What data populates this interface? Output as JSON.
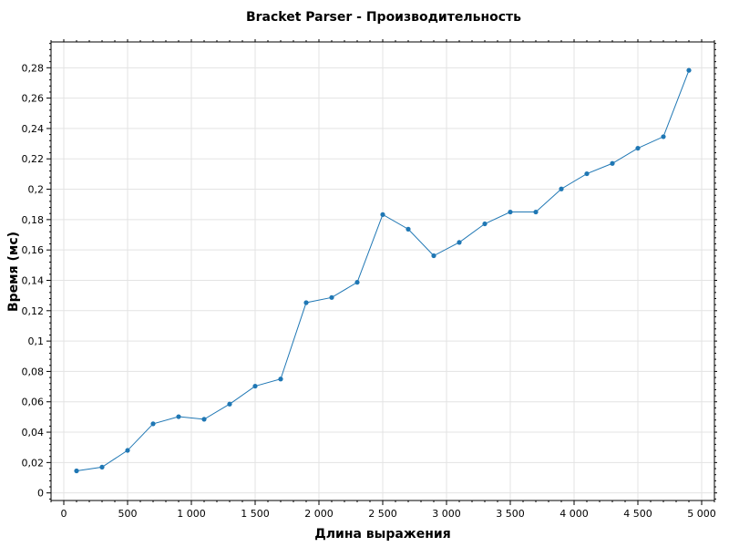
{
  "chart_data": {
    "type": "line",
    "title": "Bracket Parser - Производительность",
    "xlabel": "Длина выражения",
    "ylabel": "Время (мс)",
    "xlim": [
      -100,
      5100
    ],
    "ylim": [
      -0.005,
      0.297
    ],
    "x_ticks": [
      0,
      500,
      1000,
      1500,
      2000,
      2500,
      3000,
      3500,
      4000,
      4500,
      5000
    ],
    "x_tick_labels": [
      "0",
      "500",
      "1 000",
      "1 500",
      "2 000",
      "2 500",
      "3 000",
      "3 500",
      "4 000",
      "4 500",
      "5 000"
    ],
    "y_ticks": [
      0,
      0.02,
      0.04,
      0.06,
      0.08,
      0.1,
      0.12,
      0.14,
      0.16,
      0.18,
      0.2,
      0.22,
      0.24,
      0.26,
      0.28
    ],
    "y_tick_labels": [
      "0",
      "0,02",
      "0,04",
      "0,06",
      "0,08",
      "0,1",
      "0,12",
      "0,14",
      "0,16",
      "0,18",
      "0,2",
      "0,22",
      "0,24",
      "0,26",
      "0,28"
    ],
    "grid": true,
    "legend": "none",
    "series": [
      {
        "color": "#1f77b4",
        "x": [
          100,
          300,
          500,
          700,
          900,
          1100,
          1300,
          1500,
          1700,
          1900,
          2100,
          2300,
          2500,
          2700,
          2900,
          3100,
          3300,
          3500,
          3700,
          3900,
          4100,
          4300,
          4500,
          4700,
          4900
        ],
        "y": [
          0.0145,
          0.017,
          0.028,
          0.0455,
          0.0502,
          0.0485,
          0.0585,
          0.0703,
          0.075,
          0.1253,
          0.1287,
          0.1387,
          0.1833,
          0.1737,
          0.1562,
          0.165,
          0.1772,
          0.185,
          0.185,
          0.2002,
          0.2102,
          0.217,
          0.227,
          0.2346,
          0.2783
        ]
      }
    ]
  }
}
